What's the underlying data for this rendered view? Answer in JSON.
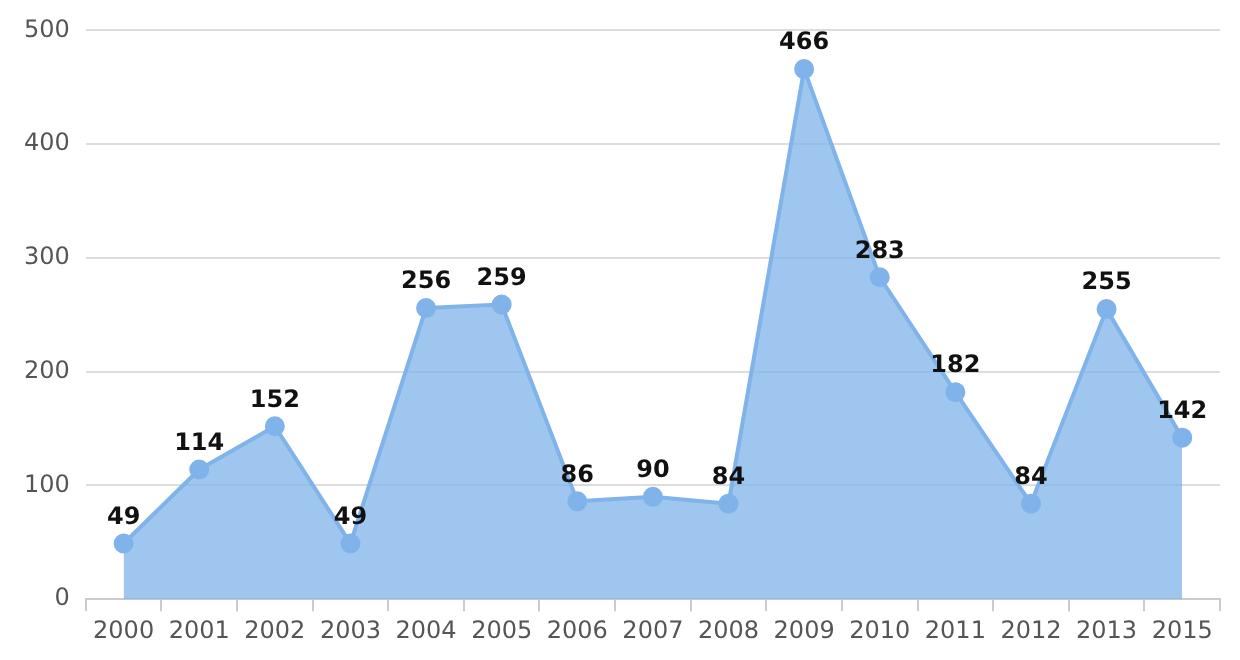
{
  "chart_data": {
    "type": "area",
    "categories": [
      "2000",
      "2001",
      "2002",
      "2003",
      "2004",
      "2005",
      "2006",
      "2007",
      "2008",
      "2009",
      "2010",
      "2011",
      "2012",
      "2013",
      "2015"
    ],
    "series": [
      {
        "color": "#7fb3ea",
        "values": [
          49,
          114,
          152,
          49,
          256,
          259,
          86,
          90,
          84,
          466,
          283,
          182,
          84,
          255,
          142
        ]
      }
    ],
    "ylim": [
      0,
      500
    ],
    "yticks": [
      0,
      100,
      200,
      300,
      400,
      500
    ],
    "grid": "y",
    "legend": false,
    "marker": "circle",
    "data_labels": true
  }
}
